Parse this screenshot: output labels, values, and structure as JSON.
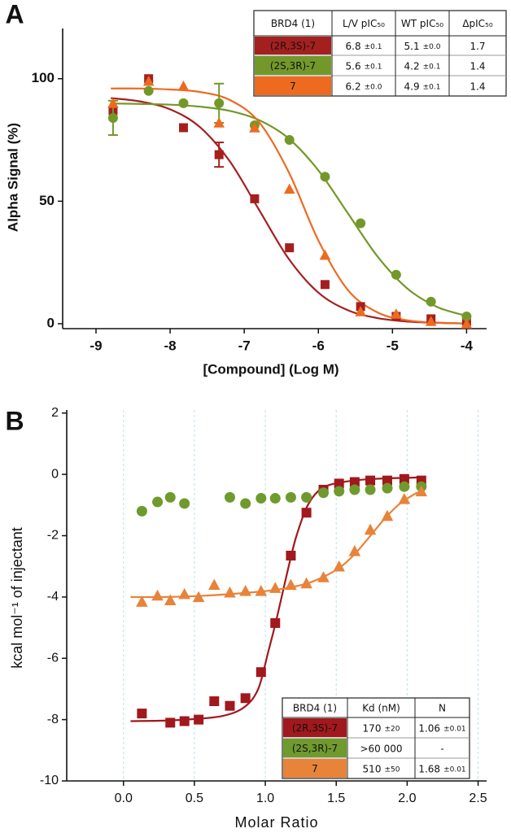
{
  "chart_data": [
    {
      "type": "scatter",
      "panel_label": "A",
      "x_label": "[Compound] (Log M)",
      "y_label": "Alpha Signal (%)",
      "xlim": [
        -9.45,
        -3.73
      ],
      "xticks": [
        -9,
        -8,
        -7,
        -6,
        -5,
        -4
      ],
      "ylim": [
        -2,
        120.5
      ],
      "yticks": [
        0,
        50,
        100
      ],
      "grid": false,
      "series": [
        {
          "name": "(2R,3S)-7",
          "color": "#a4201f",
          "marker": "square",
          "x": [
            -8.77,
            -8.29,
            -7.82,
            -7.34,
            -6.86,
            -6.39,
            -5.91,
            -5.43,
            -4.95,
            -4.48,
            -4.0
          ],
          "values": [
            87,
            100,
            80,
            69,
            51,
            31,
            16,
            7,
            3,
            2,
            1
          ],
          "errors": [
            null,
            null,
            null,
            5,
            null,
            null,
            null,
            null,
            null,
            null,
            null
          ],
          "fit_x": [
            -8.8,
            -8.4,
            -8.0,
            -7.6,
            -7.2,
            -6.8,
            -6.4,
            -6.0,
            -5.6,
            -5.2,
            -4.8,
            -4.4,
            -4.0
          ],
          "fit_values": [
            92.1,
            90.7,
            87.5,
            80.3,
            66.5,
            46.5,
            26.5,
            12.7,
            5.5,
            2.3,
            0.9,
            0.4,
            0.1
          ]
        },
        {
          "name": "(2S,3R)-7",
          "color": "#73982a",
          "marker": "circle",
          "x": [
            -8.77,
            -8.29,
            -7.82,
            -7.34,
            -6.86,
            -6.39,
            -5.91,
            -5.43,
            -4.95,
            -4.48,
            -4.0
          ],
          "values": [
            84,
            95,
            90,
            90,
            81,
            75,
            60,
            41,
            20,
            9,
            3
          ],
          "errors": [
            7,
            null,
            null,
            8,
            null,
            null,
            null,
            null,
            null,
            null,
            null
          ],
          "fit_x": [
            -8.8,
            -8.4,
            -8.0,
            -7.6,
            -7.2,
            -6.8,
            -6.4,
            -6.0,
            -5.6,
            -5.2,
            -4.8,
            -4.4,
            -4.0
          ],
          "fit_values": [
            89.9,
            89.7,
            89.4,
            88.6,
            86.9,
            83.1,
            75.6,
            62.6,
            45,
            27.4,
            14.4,
            6.9,
            3.2
          ]
        },
        {
          "name": "7",
          "color": "#ed6a1f",
          "marker": "triangle",
          "x": [
            -8.77,
            -8.29,
            -7.82,
            -7.34,
            -6.86,
            -6.39,
            -5.91,
            -5.43,
            -4.95,
            -4.48,
            -4.0
          ],
          "values": [
            90,
            99,
            97,
            82,
            80,
            55,
            28,
            5,
            4,
            1,
            0
          ],
          "errors": [
            null,
            null,
            null,
            null,
            null,
            null,
            null,
            null,
            null,
            null,
            null
          ],
          "fit_x": [
            -8.8,
            -8.4,
            -8.0,
            -7.6,
            -7.2,
            -6.8,
            -6.4,
            -6.0,
            -5.6,
            -5.2,
            -4.8,
            -4.4,
            -4.0
          ],
          "fit_values": [
            96,
            96,
            95.6,
            94.6,
            91.4,
            82.3,
            61.9,
            34.0,
            13.7,
            4.6,
            1.4,
            0.4,
            0.1
          ]
        }
      ],
      "table": {
        "columns": [
          "BRD4 (1)",
          "L/V pIC₅₀",
          "WT pIC₅₀",
          "ΔpIC₅₀"
        ],
        "rows": [
          [
            [
              "6.8",
              "±0.1"
            ],
            [
              "5.1",
              "±0.0"
            ],
            [
              "1.7"
            ]
          ],
          [
            [
              "5.6",
              "±0.1"
            ],
            [
              "4.2",
              "±0.1"
            ],
            [
              "1.4"
            ]
          ],
          [
            [
              "6.2",
              "±0.0"
            ],
            [
              "4.9",
              "±0.1"
            ],
            [
              "1.4"
            ]
          ]
        ]
      }
    },
    {
      "type": "scatter",
      "panel_label": "B",
      "x_label": "Molar Ratio",
      "y_label": "kcal mol⁻¹ of injectant",
      "xlim": [
        -0.4,
        2.56
      ],
      "xticks": [
        {
          "value": 0,
          "label": "0.0"
        },
        0.5,
        {
          "value": 1,
          "label": "1.0"
        },
        1.5,
        {
          "value": 2,
          "label": "2.0"
        },
        2.5
      ],
      "ylim": [
        -10,
        2.1
      ],
      "yticks": [
        -10,
        -8,
        -6,
        -4,
        -2,
        0,
        2
      ],
      "grid": "x",
      "series": [
        {
          "name": "(2R,3S)-7",
          "color": "#a1181d",
          "marker": "square",
          "x": [
            0.13,
            0.33,
            0.43,
            0.53,
            0.64,
            0.75,
            0.86,
            0.97,
            1.07,
            1.18,
            1.29,
            1.41,
            1.52,
            1.63,
            1.74,
            1.86,
            1.98,
            2.1
          ],
          "values": [
            -7.8,
            -8.1,
            -8.05,
            -8.0,
            -7.4,
            -7.55,
            -7.3,
            -6.45,
            -4.85,
            -2.65,
            -1.25,
            -0.5,
            -0.3,
            -0.25,
            -0.2,
            -0.2,
            -0.15,
            -0.2
          ],
          "fit_x": [
            0.05,
            0.3,
            0.5,
            0.7,
            0.85,
            0.95,
            1.02,
            1.07,
            1.12,
            1.17,
            1.22,
            1.3,
            1.4,
            1.55,
            1.75,
            2.1
          ],
          "fit_values": [
            -8.05,
            -8.03,
            -7.98,
            -7.88,
            -7.6,
            -7.0,
            -5.8,
            -4.9,
            -3.9,
            -2.9,
            -2.0,
            -1.0,
            -0.45,
            -0.25,
            -0.15,
            -0.1
          ]
        },
        {
          "name": "(2S,3R)-7",
          "color": "#6f9a2e",
          "marker": "circle",
          "x": [
            0.13,
            0.24,
            0.33,
            0.43,
            0.75,
            0.86,
            0.97,
            1.07,
            1.18,
            1.29,
            1.41,
            1.52,
            1.63,
            1.74,
            1.86,
            1.98,
            2.1
          ],
          "values": [
            -1.2,
            -0.9,
            -0.75,
            -0.95,
            -0.75,
            -0.95,
            -0.78,
            -0.78,
            -0.75,
            -0.75,
            -0.6,
            -0.55,
            -0.5,
            -0.5,
            -0.45,
            -0.4,
            -0.4
          ]
        },
        {
          "name": "7",
          "color": "#e8833a",
          "marker": "triangle",
          "x": [
            0.13,
            0.24,
            0.33,
            0.43,
            0.53,
            0.64,
            0.75,
            0.86,
            0.97,
            1.07,
            1.18,
            1.29,
            1.41,
            1.52,
            1.63,
            1.74,
            1.86,
            1.98,
            2.1
          ],
          "values": [
            -4.15,
            -3.95,
            -4.1,
            -3.9,
            -4.0,
            -3.6,
            -3.85,
            -3.8,
            -3.8,
            -3.7,
            -3.6,
            -3.55,
            -3.35,
            -3.0,
            -2.5,
            -1.8,
            -1.35,
            -0.8,
            -0.55
          ],
          "fit_x": [
            0.05,
            0.3,
            0.6,
            0.9,
            1.1,
            1.3,
            1.45,
            1.55,
            1.65,
            1.75,
            1.85,
            1.95,
            2.05,
            2.1
          ],
          "fit_values": [
            -4.0,
            -4.0,
            -3.95,
            -3.85,
            -3.75,
            -3.55,
            -3.25,
            -2.95,
            -2.5,
            -1.95,
            -1.4,
            -0.95,
            -0.65,
            -0.55
          ]
        }
      ],
      "table": {
        "columns": [
          "BRD4 (1)",
          "Kd (nM)",
          "N"
        ],
        "rows": [
          [
            [
              "170",
              "±20"
            ],
            [
              "1.06",
              "±0.01"
            ]
          ],
          [
            [
              ">60 000"
            ],
            [
              "-"
            ]
          ],
          [
            [
              "510",
              "±50"
            ],
            [
              "1.68",
              "±0.01"
            ]
          ]
        ]
      }
    }
  ]
}
